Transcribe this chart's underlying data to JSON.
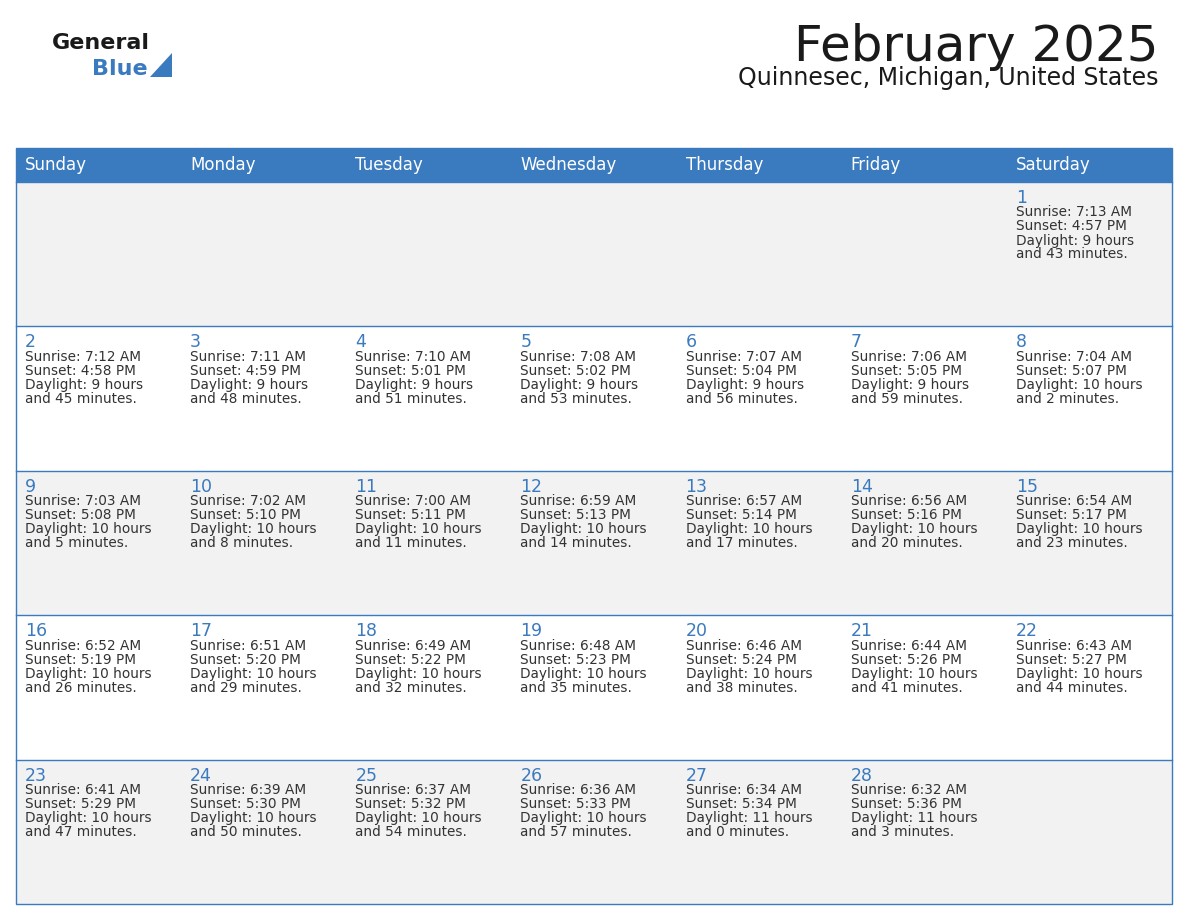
{
  "title": "February 2025",
  "subtitle": "Quinnesec, Michigan, United States",
  "header_bg_color": "#3a7abf",
  "header_text_color": "#ffffff",
  "row_bg_odd": "#f2f2f2",
  "row_bg_even": "#ffffff",
  "border_color": "#3a7abf",
  "day_names": [
    "Sunday",
    "Monday",
    "Tuesday",
    "Wednesday",
    "Thursday",
    "Friday",
    "Saturday"
  ],
  "title_color": "#1a1a1a",
  "subtitle_color": "#1a1a1a",
  "day_number_color": "#3a7abf",
  "cell_text_color": "#333333",
  "logo_general_color": "#1a1a1a",
  "logo_blue_color": "#3a7abf",
  "calendar_data": [
    [
      null,
      null,
      null,
      null,
      null,
      null,
      {
        "day": "1",
        "sunrise": "7:13 AM",
        "sunset": "4:57 PM",
        "daylight_h": "9 hours",
        "daylight_m": "and 43 minutes."
      }
    ],
    [
      {
        "day": "2",
        "sunrise": "7:12 AM",
        "sunset": "4:58 PM",
        "daylight_h": "9 hours",
        "daylight_m": "and 45 minutes."
      },
      {
        "day": "3",
        "sunrise": "7:11 AM",
        "sunset": "4:59 PM",
        "daylight_h": "9 hours",
        "daylight_m": "and 48 minutes."
      },
      {
        "day": "4",
        "sunrise": "7:10 AM",
        "sunset": "5:01 PM",
        "daylight_h": "9 hours",
        "daylight_m": "and 51 minutes."
      },
      {
        "day": "5",
        "sunrise": "7:08 AM",
        "sunset": "5:02 PM",
        "daylight_h": "9 hours",
        "daylight_m": "and 53 minutes."
      },
      {
        "day": "6",
        "sunrise": "7:07 AM",
        "sunset": "5:04 PM",
        "daylight_h": "9 hours",
        "daylight_m": "and 56 minutes."
      },
      {
        "day": "7",
        "sunrise": "7:06 AM",
        "sunset": "5:05 PM",
        "daylight_h": "9 hours",
        "daylight_m": "and 59 minutes."
      },
      {
        "day": "8",
        "sunrise": "7:04 AM",
        "sunset": "5:07 PM",
        "daylight_h": "10 hours",
        "daylight_m": "and 2 minutes."
      }
    ],
    [
      {
        "day": "9",
        "sunrise": "7:03 AM",
        "sunset": "5:08 PM",
        "daylight_h": "10 hours",
        "daylight_m": "and 5 minutes."
      },
      {
        "day": "10",
        "sunrise": "7:02 AM",
        "sunset": "5:10 PM",
        "daylight_h": "10 hours",
        "daylight_m": "and 8 minutes."
      },
      {
        "day": "11",
        "sunrise": "7:00 AM",
        "sunset": "5:11 PM",
        "daylight_h": "10 hours",
        "daylight_m": "and 11 minutes."
      },
      {
        "day": "12",
        "sunrise": "6:59 AM",
        "sunset": "5:13 PM",
        "daylight_h": "10 hours",
        "daylight_m": "and 14 minutes."
      },
      {
        "day": "13",
        "sunrise": "6:57 AM",
        "sunset": "5:14 PM",
        "daylight_h": "10 hours",
        "daylight_m": "and 17 minutes."
      },
      {
        "day": "14",
        "sunrise": "6:56 AM",
        "sunset": "5:16 PM",
        "daylight_h": "10 hours",
        "daylight_m": "and 20 minutes."
      },
      {
        "day": "15",
        "sunrise": "6:54 AM",
        "sunset": "5:17 PM",
        "daylight_h": "10 hours",
        "daylight_m": "and 23 minutes."
      }
    ],
    [
      {
        "day": "16",
        "sunrise": "6:52 AM",
        "sunset": "5:19 PM",
        "daylight_h": "10 hours",
        "daylight_m": "and 26 minutes."
      },
      {
        "day": "17",
        "sunrise": "6:51 AM",
        "sunset": "5:20 PM",
        "daylight_h": "10 hours",
        "daylight_m": "and 29 minutes."
      },
      {
        "day": "18",
        "sunrise": "6:49 AM",
        "sunset": "5:22 PM",
        "daylight_h": "10 hours",
        "daylight_m": "and 32 minutes."
      },
      {
        "day": "19",
        "sunrise": "6:48 AM",
        "sunset": "5:23 PM",
        "daylight_h": "10 hours",
        "daylight_m": "and 35 minutes."
      },
      {
        "day": "20",
        "sunrise": "6:46 AM",
        "sunset": "5:24 PM",
        "daylight_h": "10 hours",
        "daylight_m": "and 38 minutes."
      },
      {
        "day": "21",
        "sunrise": "6:44 AM",
        "sunset": "5:26 PM",
        "daylight_h": "10 hours",
        "daylight_m": "and 41 minutes."
      },
      {
        "day": "22",
        "sunrise": "6:43 AM",
        "sunset": "5:27 PM",
        "daylight_h": "10 hours",
        "daylight_m": "and 44 minutes."
      }
    ],
    [
      {
        "day": "23",
        "sunrise": "6:41 AM",
        "sunset": "5:29 PM",
        "daylight_h": "10 hours",
        "daylight_m": "and 47 minutes."
      },
      {
        "day": "24",
        "sunrise": "6:39 AM",
        "sunset": "5:30 PM",
        "daylight_h": "10 hours",
        "daylight_m": "and 50 minutes."
      },
      {
        "day": "25",
        "sunrise": "6:37 AM",
        "sunset": "5:32 PM",
        "daylight_h": "10 hours",
        "daylight_m": "and 54 minutes."
      },
      {
        "day": "26",
        "sunrise": "6:36 AM",
        "sunset": "5:33 PM",
        "daylight_h": "10 hours",
        "daylight_m": "and 57 minutes."
      },
      {
        "day": "27",
        "sunrise": "6:34 AM",
        "sunset": "5:34 PM",
        "daylight_h": "11 hours",
        "daylight_m": "and 0 minutes."
      },
      {
        "day": "28",
        "sunrise": "6:32 AM",
        "sunset": "5:36 PM",
        "daylight_h": "11 hours",
        "daylight_m": "and 3 minutes."
      },
      null
    ]
  ]
}
